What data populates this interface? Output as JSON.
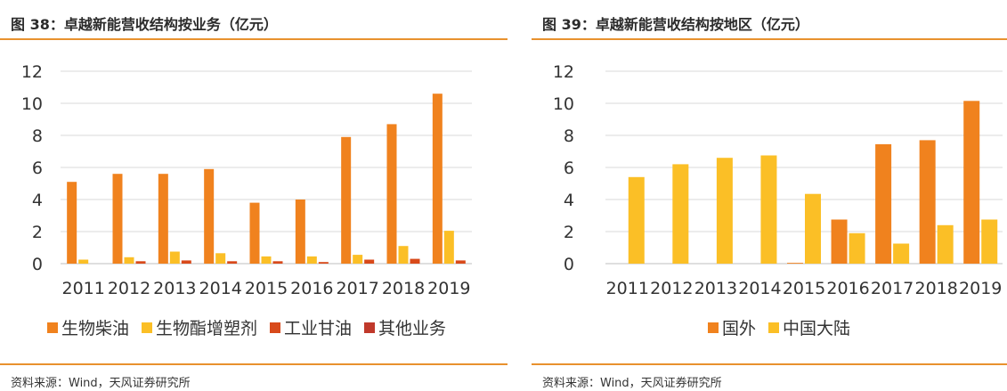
{
  "panels": [
    {
      "title": "图 38：卓越新能营收结构按业务（亿元）",
      "source": "资料来源：Wind，天风证券研究所"
    },
    {
      "title": "图 39：卓越新能营收结构按地区（亿元）",
      "source": "资料来源：Wind，天风证券研究所"
    }
  ],
  "chart_data": [
    {
      "type": "bar",
      "categories": [
        "2011",
        "2012",
        "2013",
        "2014",
        "2015",
        "2016",
        "2017",
        "2018",
        "2019"
      ],
      "series": [
        {
          "name": "生物柴油",
          "color": "#f0821e",
          "values": [
            5.1,
            5.6,
            5.6,
            5.9,
            3.8,
            4.0,
            7.9,
            8.7,
            10.6
          ]
        },
        {
          "name": "生物酯增塑剂",
          "color": "#fbbf26",
          "values": [
            0.25,
            0.4,
            0.75,
            0.65,
            0.45,
            0.45,
            0.55,
            1.1,
            2.05
          ]
        },
        {
          "name": "工业甘油",
          "color": "#d84a1b",
          "values": [
            0,
            0.15,
            0.2,
            0.15,
            0.15,
            0.1,
            0.25,
            0.3,
            0.2
          ]
        },
        {
          "name": "其他业务",
          "color": "#c0392b",
          "values": [
            0,
            0,
            0,
            0,
            0,
            0,
            0,
            0,
            0
          ]
        }
      ],
      "yticks": [
        "0",
        "2",
        "4",
        "6",
        "8",
        "10",
        "12"
      ],
      "ylim": [
        0,
        12
      ],
      "grid": true,
      "legend": "bottom"
    },
    {
      "type": "bar",
      "categories": [
        "2011",
        "2012",
        "2013",
        "2014",
        "2015",
        "2016",
        "2017",
        "2018",
        "2019"
      ],
      "series": [
        {
          "name": "国外",
          "color": "#f0821e",
          "values": [
            0,
            0,
            0,
            0,
            0.05,
            2.75,
            7.45,
            7.7,
            10.15
          ]
        },
        {
          "name": "中国大陆",
          "color": "#fbbf26",
          "values": [
            5.4,
            6.2,
            6.6,
            6.75,
            4.35,
            1.9,
            1.25,
            2.4,
            2.75
          ]
        }
      ],
      "yticks": [
        "0",
        "2",
        "4",
        "6",
        "8",
        "10",
        "12"
      ],
      "ylim": [
        0,
        12
      ],
      "grid": true,
      "legend": "bottom"
    }
  ]
}
